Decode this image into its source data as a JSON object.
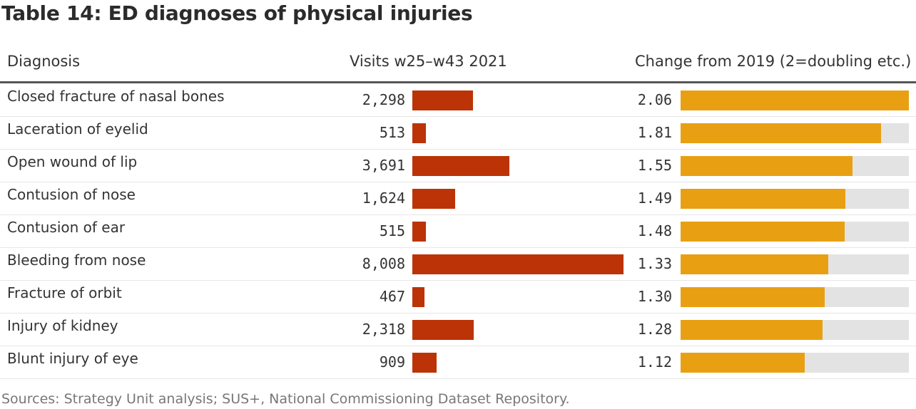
{
  "title": "Table 14: ED diagnoses of physical injuries",
  "columns": {
    "diagnosis": "Diagnosis",
    "visits": "Visits w25–w43 2021",
    "change": "Change from 2019 (2=doubling etc.)"
  },
  "source": "Sources: Strategy Unit analysis; SUS+, National Commissioning Dataset Repository.",
  "colors": {
    "visits_bar": "#bb3306",
    "change_bar": "#e8a012",
    "change_track": "#e3e3e3"
  },
  "chart_data": {
    "type": "table",
    "columns": [
      "Diagnosis",
      "Visits w25–w43 2021",
      "Change from 2019 (2=doubling etc.)"
    ],
    "visits_max": 8008,
    "change_max": 2.06,
    "rows": [
      {
        "diagnosis": "Closed fracture of nasal bones",
        "visits": 2298,
        "visits_label": "2,298",
        "change": 2.06,
        "change_label": "2.06"
      },
      {
        "diagnosis": "Laceration of eyelid",
        "visits": 513,
        "visits_label": "513",
        "change": 1.81,
        "change_label": "1.81"
      },
      {
        "diagnosis": "Open wound of lip",
        "visits": 3691,
        "visits_label": "3,691",
        "change": 1.55,
        "change_label": "1.55"
      },
      {
        "diagnosis": "Contusion of nose",
        "visits": 1624,
        "visits_label": "1,624",
        "change": 1.49,
        "change_label": "1.49"
      },
      {
        "diagnosis": "Contusion of ear",
        "visits": 515,
        "visits_label": "515",
        "change": 1.48,
        "change_label": "1.48"
      },
      {
        "diagnosis": "Bleeding from nose",
        "visits": 8008,
        "visits_label": "8,008",
        "change": 1.33,
        "change_label": "1.33"
      },
      {
        "diagnosis": "Fracture of orbit",
        "visits": 467,
        "visits_label": "467",
        "change": 1.3,
        "change_label": "1.30"
      },
      {
        "diagnosis": "Injury of kidney",
        "visits": 2318,
        "visits_label": "2,318",
        "change": 1.28,
        "change_label": "1.28"
      },
      {
        "diagnosis": "Blunt injury of eye",
        "visits": 909,
        "visits_label": "909",
        "change": 1.12,
        "change_label": "1.12"
      }
    ]
  }
}
